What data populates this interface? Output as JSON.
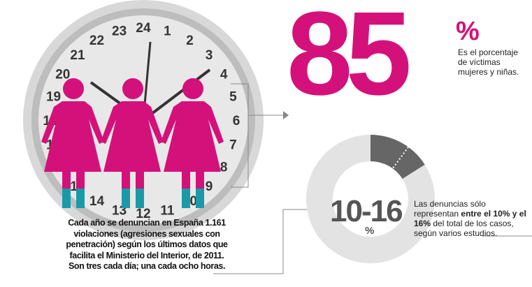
{
  "clock": {
    "numbers": [
      "24",
      "1",
      "2",
      "3",
      "4",
      "5",
      "6",
      "7",
      "8",
      "9",
      "10",
      "11",
      "12",
      "13",
      "14",
      "15",
      "16",
      "17",
      "18",
      "19",
      "20",
      "21",
      "22",
      "23"
    ]
  },
  "caption": "Cada año se denuncian en España 1.161 violaciones (agresiones sexuales con penetración) según los últimos datos que facilita el Ministerio del Interior, de 2011. Son tres cada día; una cada ocho horas.",
  "stat85": {
    "value": "85",
    "unit": "%",
    "text": "Es el porcentaje de víctimas mujeres y niñas."
  },
  "stat1016": {
    "value": "10-16",
    "unit": "%",
    "text_pre": "Las denuncias sólo representan ",
    "text_bold1": "entre el 10% y el 16%",
    "text_post": " del total de los casos, según varios estudios.",
    "range_percent": [
      10,
      16
    ]
  },
  "colors": {
    "magenta": "#d4117a",
    "teal": "#1a9aa8",
    "gray_dark": "#666666",
    "gray_light": "#e3e3e3"
  }
}
